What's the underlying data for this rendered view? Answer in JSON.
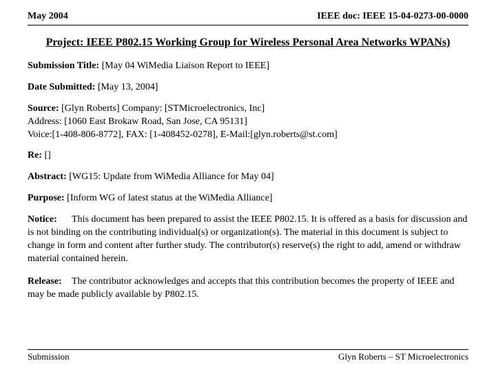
{
  "header": {
    "left": "May 2004",
    "right": "IEEE doc: IEEE 15-04-0273-00-0000"
  },
  "title": "Project: IEEE P802.15 Working Group for Wireless Personal Area Networks WPANs)",
  "fields": {
    "submission_title_label": "Submission Title:",
    "submission_title_value": " [May 04 WiMedia Liaison Report to IEEE]",
    "date_label": "Date Submitted:",
    "date_value": " [May 13, 2004]",
    "source_label": "Source:",
    "source_line1_rest": " [Glyn Roberts]    Company: [STMicroelectronics, Inc]",
    "source_line2": "Address: [1060 East Brokaw Road, San Jose, CA  95131]",
    "source_line3": "Voice:[1-408-806-8772], FAX: [1-408452-0278], E-Mail:[glyn.roberts@st.com]",
    "re_label": "Re:",
    "re_value": " []",
    "abstract_label": "Abstract:",
    "abstract_value": "   [WG15:  Update  from WiMedia Alliance for May 04]",
    "purpose_label": "Purpose:",
    "purpose_value": "   [Inform WG of latest status at the WiMedia Alliance]",
    "notice_label": "Notice:",
    "notice_value": "This document has been prepared to assist the IEEE P802.15.  It is offered as a basis for discussion and is not binding on the contributing individual(s) or organization(s). The material in this document is subject to change in form and content after further study. The contributor(s) reserve(s) the right to add, amend or withdraw material contained herein.",
    "release_label": "Release:",
    "release_value": "The contributor acknowledges and accepts that this contribution becomes the property of IEEE and may be made publicly available by P802.15."
  },
  "footer": {
    "left": "Submission",
    "right": "Glyn Roberts – ST Microelectronics"
  },
  "colors": {
    "text": "#000000",
    "background": "#ffffff",
    "rule": "#000000"
  }
}
